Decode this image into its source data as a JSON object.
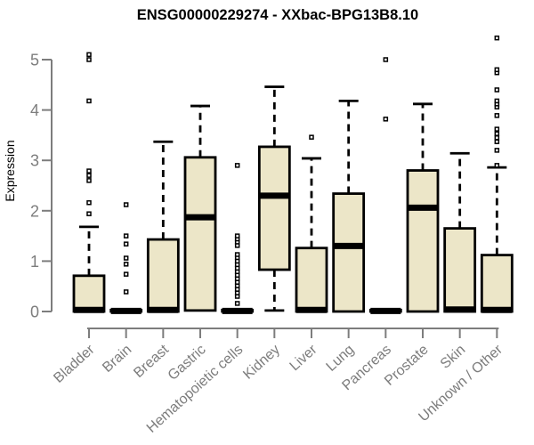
{
  "page": {
    "background": "#ffffff"
  },
  "chart_data": {
    "type": "boxplot",
    "title": "ENSG00000229274 - XXbac-BPG13B8.10",
    "ylabel": "Expression",
    "xlabel": "",
    "ylim": [
      0,
      5.5
    ],
    "yticks": [
      0,
      1,
      2,
      3,
      4,
      5
    ],
    "grid": false,
    "legend": "none",
    "colors": {
      "box_fill": "#ece6c8",
      "box_stroke": "#000000",
      "median": "#000000",
      "whisker": "#000000",
      "outlier_stroke": "#000000",
      "outlier_fill": "#ffffff",
      "axis": "#7d7d7d",
      "axis_text": "#7d7d7d",
      "title_text": "#000000"
    },
    "categories": [
      "Bladder",
      "Brain",
      "Breast",
      "Gastric",
      "Hematopoietic cells",
      "Kidney",
      "Liver",
      "Lung",
      "Pancreas",
      "Prostate",
      "Skin",
      "Unknown / Other"
    ],
    "boxes": [
      {
        "category": "Bladder",
        "whisker_low": 0,
        "q1": 0,
        "median": 0.03,
        "q3": 0.71,
        "whisker_high": 1.68,
        "outliers": [
          1.94,
          2.16,
          2.6,
          2.7,
          2.79,
          4.18,
          5.0,
          5.1
        ]
      },
      {
        "category": "Brain",
        "whisker_low": 0,
        "q1": 0,
        "median": 0.01,
        "q3": 0.03,
        "whisker_high": 0.03,
        "outliers": [
          0.39,
          0.74,
          0.94,
          1.06,
          1.34,
          1.5,
          2.12
        ]
      },
      {
        "category": "Breast",
        "whisker_low": 0,
        "q1": 0,
        "median": 0.03,
        "q3": 1.43,
        "whisker_high": 3.37,
        "outliers": []
      },
      {
        "category": "Gastric",
        "whisker_low": 0.02,
        "q1": 0.02,
        "median": 1.87,
        "q3": 3.06,
        "whisker_high": 4.08,
        "outliers": []
      },
      {
        "category": "Hematopoietic cells",
        "whisker_low": 0,
        "q1": 0,
        "median": 0.01,
        "q3": 0.03,
        "whisker_high": 0.03,
        "outliers": [
          0.16,
          0.3,
          0.37,
          0.44,
          0.51,
          0.58,
          0.65,
          0.72,
          0.79,
          0.86,
          0.93,
          1.0,
          1.07,
          1.13,
          1.31,
          1.38,
          1.44,
          1.5,
          2.9
        ]
      },
      {
        "category": "Kidney",
        "whisker_low": 0.02,
        "q1": 0.83,
        "median": 2.3,
        "q3": 3.27,
        "whisker_high": 4.46,
        "outliers": []
      },
      {
        "category": "Liver",
        "whisker_low": 0,
        "q1": 0,
        "median": 0.03,
        "q3": 1.26,
        "whisker_high": 3.04,
        "outliers": [
          3.46
        ]
      },
      {
        "category": "Lung",
        "whisker_low": 0,
        "q1": 0,
        "median": 1.3,
        "q3": 2.34,
        "whisker_high": 4.18,
        "outliers": []
      },
      {
        "category": "Pancreas",
        "whisker_low": 0,
        "q1": 0,
        "median": 0.01,
        "q3": 0.03,
        "whisker_high": 0.03,
        "outliers": [
          3.82,
          5.0
        ]
      },
      {
        "category": "Prostate",
        "whisker_low": 0,
        "q1": 0,
        "median": 2.06,
        "q3": 2.8,
        "whisker_high": 4.12,
        "outliers": []
      },
      {
        "category": "Skin",
        "whisker_low": 0,
        "q1": 0,
        "median": 0.04,
        "q3": 1.65,
        "whisker_high": 3.14,
        "outliers": []
      },
      {
        "category": "Unknown / Other",
        "whisker_low": 0,
        "q1": 0,
        "median": 0.03,
        "q3": 1.12,
        "whisker_high": 2.86,
        "outliers": [
          2.9,
          3.2,
          3.37,
          3.45,
          3.53,
          3.62,
          3.89,
          4.06,
          4.12,
          4.18,
          4.4,
          4.74,
          4.8,
          5.43
        ]
      }
    ]
  }
}
